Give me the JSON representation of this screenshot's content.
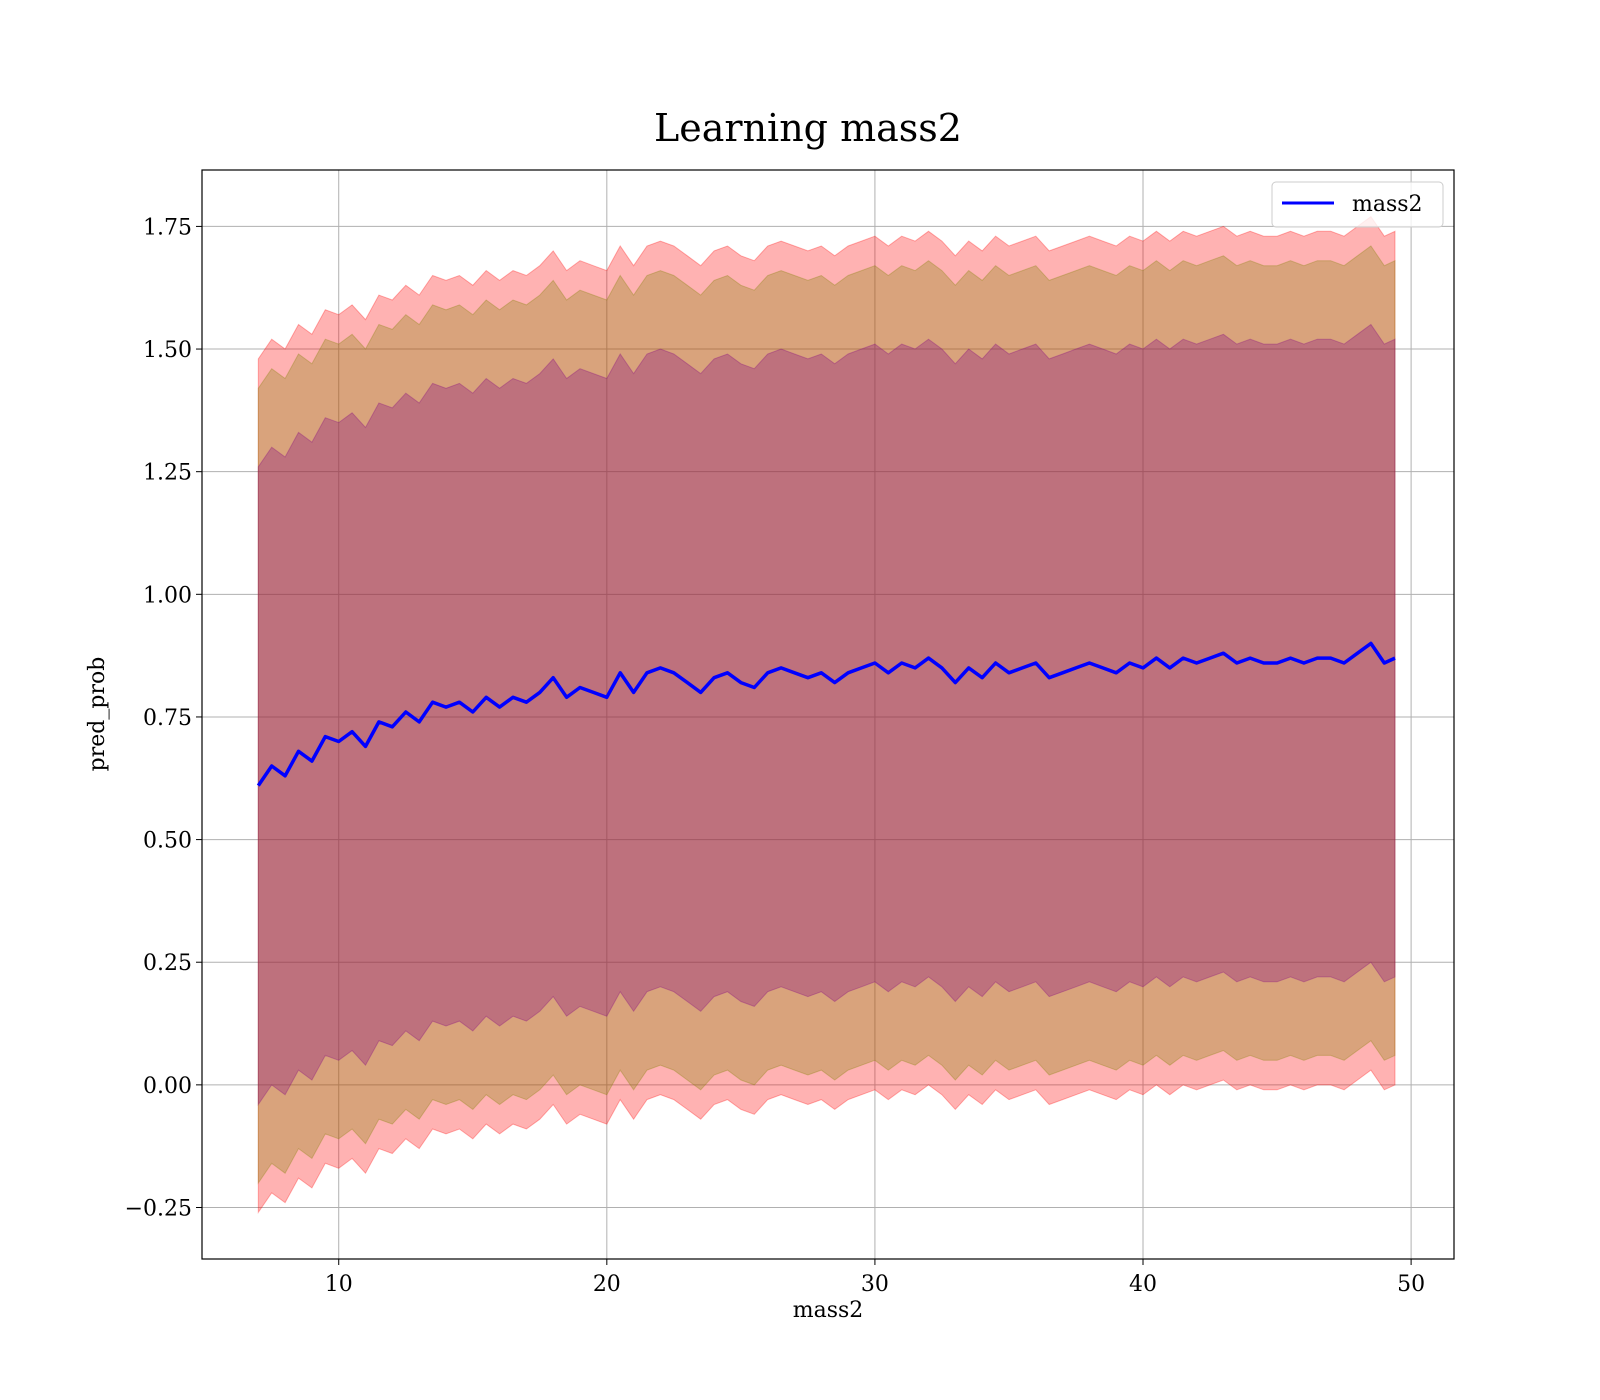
{
  "chart_data": {
    "type": "line",
    "title": "Learning mass2",
    "xlabel": "mass2",
    "ylabel": "pred_prob",
    "xlim": [
      4.9,
      51.6
    ],
    "ylim": [
      -0.355,
      1.865
    ],
    "xticks": [
      10,
      20,
      30,
      40,
      50
    ],
    "xtick_labels": [
      "10",
      "20",
      "30",
      "40",
      "50"
    ],
    "yticks": [
      -0.25,
      0,
      0.25,
      0.5,
      0.75,
      1.0,
      1.25,
      1.5,
      1.75
    ],
    "ytick_labels": [
      "−0.25",
      "0.00",
      "0.25",
      "0.50",
      "0.75",
      "1.00",
      "1.25",
      "1.50",
      "1.75"
    ],
    "grid": true,
    "legend": {
      "position": "top-right",
      "entries": [
        "mass2"
      ]
    },
    "x": [
      7.0,
      7.5,
      8.0,
      8.5,
      9.0,
      9.5,
      10.0,
      10.5,
      11.0,
      11.5,
      12.0,
      12.5,
      13.0,
      13.5,
      14.0,
      14.5,
      15.0,
      15.5,
      16.0,
      16.5,
      17.0,
      17.5,
      18.0,
      18.5,
      19.0,
      19.5,
      20.0,
      20.5,
      21.0,
      21.5,
      22.0,
      22.5,
      23.0,
      23.5,
      24.0,
      24.5,
      25.0,
      25.5,
      26.0,
      26.5,
      27.0,
      27.5,
      28.0,
      28.5,
      29.0,
      29.5,
      30.0,
      30.5,
      31.0,
      31.5,
      32.0,
      32.5,
      33.0,
      33.5,
      34.0,
      34.5,
      35.0,
      35.5,
      36.0,
      36.5,
      37.0,
      37.5,
      38.0,
      38.5,
      39.0,
      39.5,
      40.0,
      40.5,
      41.0,
      41.5,
      42.0,
      42.5,
      43.0,
      43.5,
      44.0,
      44.5,
      45.0,
      45.5,
      46.0,
      46.5,
      47.0,
      47.5,
      48.0,
      48.5,
      49.0,
      49.4
    ],
    "series": [
      {
        "name": "mass2",
        "role": "mean",
        "color": "#0000ff",
        "values": [
          0.61,
          0.65,
          0.63,
          0.68,
          0.66,
          0.71,
          0.7,
          0.72,
          0.69,
          0.74,
          0.73,
          0.76,
          0.74,
          0.78,
          0.77,
          0.78,
          0.76,
          0.79,
          0.77,
          0.79,
          0.78,
          0.8,
          0.83,
          0.79,
          0.81,
          0.8,
          0.79,
          0.84,
          0.8,
          0.84,
          0.85,
          0.84,
          0.82,
          0.8,
          0.83,
          0.84,
          0.82,
          0.81,
          0.84,
          0.85,
          0.84,
          0.83,
          0.84,
          0.82,
          0.84,
          0.85,
          0.86,
          0.84,
          0.86,
          0.85,
          0.87,
          0.85,
          0.82,
          0.85,
          0.83,
          0.86,
          0.84,
          0.85,
          0.86,
          0.83,
          0.84,
          0.85,
          0.86,
          0.85,
          0.84,
          0.86,
          0.85,
          0.87,
          0.85,
          0.87,
          0.86,
          0.87,
          0.88,
          0.86,
          0.87,
          0.86,
          0.86,
          0.87,
          0.86,
          0.87,
          0.87,
          0.86,
          0.88,
          0.9,
          0.86,
          0.87
        ]
      }
    ],
    "bands": [
      {
        "role": "outer",
        "offset": 0.87,
        "fill": "#ff0000",
        "opacity": 0.3
      },
      {
        "role": "middle",
        "offset": 0.81,
        "fill": "#808000",
        "opacity": 0.3
      },
      {
        "role": "inner",
        "offset": 0.65,
        "fill": "#800080",
        "opacity": 0.3
      }
    ]
  }
}
